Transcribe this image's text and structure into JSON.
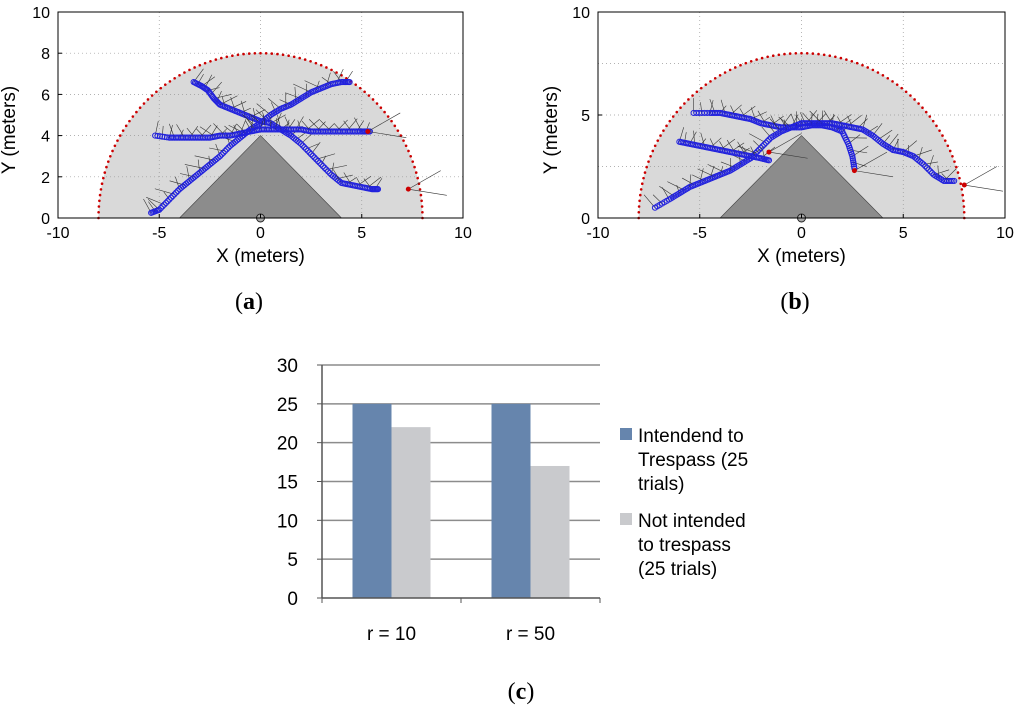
{
  "chart_data": [
    {
      "id": "a",
      "type": "scatter",
      "panel_label": "a",
      "xlabel": "X (meters)",
      "ylabel": "Y (meters)",
      "xlim": [
        -10,
        10
      ],
      "ylim": [
        0,
        10
      ],
      "xticks": [
        -10,
        -5,
        0,
        5,
        10
      ],
      "yticks": [
        0,
        2,
        4,
        6,
        8,
        10
      ],
      "grid": true,
      "region_radius": 8,
      "obstacle_triangle": [
        [
          -4,
          0
        ],
        [
          0,
          4
        ],
        [
          4,
          0
        ]
      ],
      "sensor_origin": [
        0,
        0
      ],
      "series": [
        {
          "name": "trajectory 1",
          "color": "#2222dd",
          "points": [
            [
              -3.3,
              6.6
            ],
            [
              -2.9,
              6.4
            ],
            [
              -2.6,
              6.2
            ],
            [
              -2.3,
              5.8
            ],
            [
              -2.0,
              5.5
            ],
            [
              -1.5,
              5.3
            ],
            [
              -1.0,
              5.1
            ],
            [
              -0.5,
              4.9
            ],
            [
              0,
              4.7
            ],
            [
              0.5,
              4.6
            ],
            [
              1.0,
              4.3
            ],
            [
              1.5,
              4.0
            ],
            [
              2.0,
              3.6
            ],
            [
              2.5,
              3.1
            ],
            [
              3.0,
              2.6
            ],
            [
              3.5,
              2.1
            ],
            [
              4.0,
              1.7
            ],
            [
              4.5,
              1.6
            ],
            [
              5.0,
              1.5
            ],
            [
              5.5,
              1.4
            ],
            [
              5.8,
              1.4
            ]
          ]
        },
        {
          "name": "trajectory 2",
          "color": "#2222dd",
          "points": [
            [
              -5.4,
              0.25
            ],
            [
              -5.0,
              0.4
            ],
            [
              -4.5,
              0.9
            ],
            [
              -4.0,
              1.4
            ],
            [
              -3.5,
              1.8
            ],
            [
              -3.0,
              2.2
            ],
            [
              -2.5,
              2.6
            ],
            [
              -2.0,
              3.0
            ],
            [
              -1.5,
              3.5
            ],
            [
              -1.0,
              3.9
            ],
            [
              -0.5,
              4.3
            ],
            [
              0,
              4.6
            ],
            [
              0.5,
              5.0
            ],
            [
              1.0,
              5.3
            ],
            [
              1.5,
              5.5
            ],
            [
              2.0,
              5.8
            ],
            [
              2.5,
              6.1
            ],
            [
              3.0,
              6.3
            ],
            [
              3.5,
              6.5
            ],
            [
              4.0,
              6.6
            ],
            [
              4.4,
              6.6
            ]
          ]
        },
        {
          "name": "trajectory 3",
          "color": "#2222dd",
          "points": [
            [
              -5.2,
              4.0
            ],
            [
              -4.5,
              3.9
            ],
            [
              -4.0,
              3.9
            ],
            [
              -3.5,
              3.9
            ],
            [
              -3.0,
              3.9
            ],
            [
              -2.5,
              3.9
            ],
            [
              -2.0,
              4.0
            ],
            [
              -1.5,
              4.0
            ],
            [
              -1.0,
              4.1
            ],
            [
              -0.5,
              4.2
            ],
            [
              0,
              4.3
            ],
            [
              0.5,
              4.3
            ],
            [
              1.0,
              4.3
            ],
            [
              1.5,
              4.3
            ],
            [
              2.0,
              4.3
            ],
            [
              2.5,
              4.2
            ],
            [
              3.0,
              4.2
            ],
            [
              3.5,
              4.2
            ],
            [
              4.0,
              4.2
            ],
            [
              4.5,
              4.2
            ],
            [
              5.0,
              4.2
            ],
            [
              5.4,
              4.2
            ]
          ]
        }
      ],
      "endpoint_markers": [
        [
          5.3,
          4.2
        ],
        [
          7.3,
          1.4
        ]
      ]
    },
    {
      "id": "b",
      "type": "scatter",
      "panel_label": "b",
      "xlabel": "X (meters)",
      "ylabel": "Y (meters)",
      "xlim": [
        -10,
        10
      ],
      "ylim": [
        0,
        10
      ],
      "xticks": [
        -10,
        -5,
        0,
        5,
        10
      ],
      "yticks": [
        0,
        5,
        10
      ],
      "grid": true,
      "region_radius": 8,
      "obstacle_triangle": [
        [
          -4,
          0
        ],
        [
          0,
          4
        ],
        [
          4,
          0
        ]
      ],
      "sensor_origin": [
        0,
        0
      ],
      "series": [
        {
          "name": "trajectory 1",
          "color": "#2222dd",
          "points": [
            [
              -5.3,
              5.1
            ],
            [
              -4.5,
              5.1
            ],
            [
              -4.0,
              5.1
            ],
            [
              -3.5,
              5.0
            ],
            [
              -3.0,
              4.9
            ],
            [
              -2.5,
              4.8
            ],
            [
              -2.0,
              4.6
            ],
            [
              -1.5,
              4.5
            ],
            [
              -1.0,
              4.4
            ],
            [
              -0.5,
              4.4
            ],
            [
              0,
              4.4
            ],
            [
              0.5,
              4.5
            ],
            [
              1.0,
              4.5
            ],
            [
              1.5,
              4.4
            ],
            [
              2.0,
              4.2
            ],
            [
              2.3,
              3.6
            ],
            [
              2.5,
              3.0
            ],
            [
              2.6,
              2.4
            ]
          ]
        },
        {
          "name": "trajectory 2",
          "color": "#2222dd",
          "points": [
            [
              -7.2,
              0.5
            ],
            [
              -6.5,
              0.9
            ],
            [
              -6.0,
              1.2
            ],
            [
              -5.5,
              1.5
            ],
            [
              -5.0,
              1.7
            ],
            [
              -4.5,
              1.9
            ],
            [
              -4.0,
              2.1
            ],
            [
              -3.5,
              2.3
            ],
            [
              -3.0,
              2.6
            ],
            [
              -2.5,
              2.9
            ],
            [
              -2.0,
              3.4
            ],
            [
              -1.5,
              3.9
            ],
            [
              -1.0,
              4.2
            ],
            [
              -0.5,
              4.4
            ],
            [
              0,
              4.6
            ],
            [
              0.5,
              4.6
            ],
            [
              1.0,
              4.6
            ],
            [
              1.5,
              4.6
            ],
            [
              2.0,
              4.5
            ],
            [
              2.5,
              4.4
            ],
            [
              3.0,
              4.3
            ],
            [
              3.5,
              4.0
            ],
            [
              4.0,
              3.6
            ],
            [
              4.5,
              3.3
            ],
            [
              5.0,
              3.2
            ],
            [
              5.5,
              3.0
            ],
            [
              6.0,
              2.6
            ],
            [
              6.5,
              2.1
            ],
            [
              7.0,
              1.8
            ],
            [
              7.5,
              1.8
            ]
          ]
        },
        {
          "name": "trajectory 3",
          "color": "#2222dd",
          "points": [
            [
              -6.0,
              3.7
            ],
            [
              -5.5,
              3.6
            ],
            [
              -5.0,
              3.5
            ],
            [
              -4.5,
              3.4
            ],
            [
              -4.0,
              3.3
            ],
            [
              -3.5,
              3.2
            ],
            [
              -3.0,
              3.1
            ],
            [
              -2.5,
              3.0
            ],
            [
              -2.0,
              2.9
            ],
            [
              -1.6,
              2.8
            ]
          ]
        }
      ],
      "endpoint_markers": [
        [
          -1.6,
          3.2
        ],
        [
          2.6,
          2.3
        ],
        [
          8.0,
          1.6
        ]
      ]
    },
    {
      "id": "c",
      "type": "bar",
      "panel_label": "c",
      "categories": [
        "r = 10",
        "r = 50"
      ],
      "series": [
        {
          "name": "Intendend to Trespass (25 trials)",
          "color": "#6685ad",
          "values": [
            25,
            25
          ],
          "legend_lines": [
            "Intendend to",
            "Trespass (25",
            "trials)"
          ]
        },
        {
          "name": "Not intended to trespass (25 trials)",
          "color": "#c9cacd",
          "values": [
            22,
            17
          ],
          "legend_lines": [
            "Not intended",
            "to trespass",
            "(25 trials)"
          ]
        }
      ],
      "ylim": [
        0,
        30
      ],
      "yticks": [
        0,
        5,
        10,
        15,
        20,
        25,
        30
      ],
      "grid": true,
      "legend_position": "right"
    }
  ]
}
